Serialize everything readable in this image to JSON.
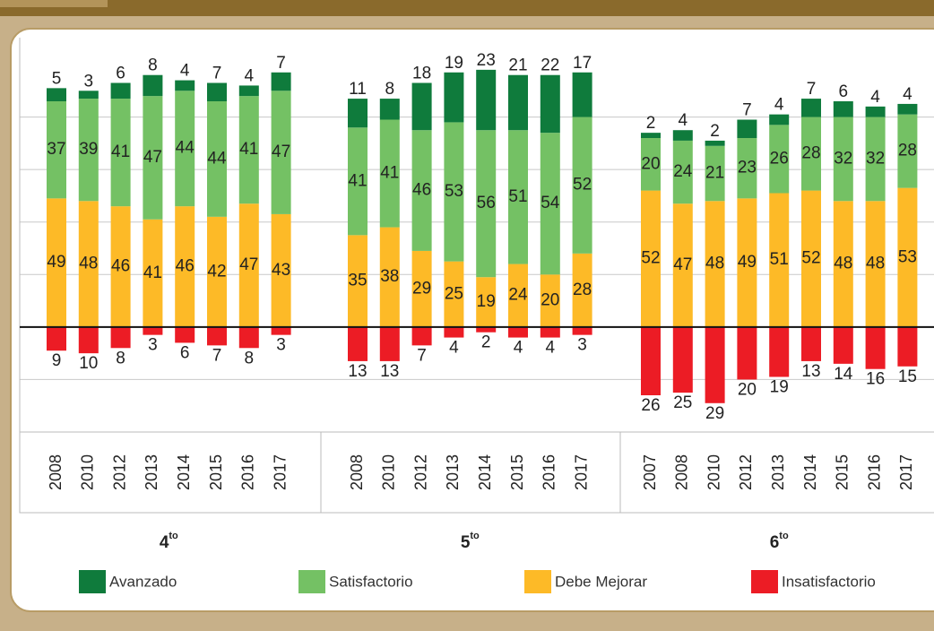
{
  "chart_data": {
    "type": "bar",
    "stacked": true,
    "ylim": [
      -40,
      100
    ],
    "yticks": [
      -20,
      0,
      20,
      40,
      60,
      80
    ],
    "grid": true,
    "groups": [
      {
        "label": "4",
        "label_sup": "to"
      },
      {
        "label": "5",
        "label_sup": "to"
      },
      {
        "label": "6",
        "label_sup": "to"
      }
    ],
    "categories": [
      [
        "2008",
        "2010",
        "2012",
        "2013",
        "2014",
        "2015",
        "2016",
        "2017"
      ],
      [
        "2008",
        "2010",
        "2012",
        "2013",
        "2014",
        "2015",
        "2016",
        "2017"
      ],
      [
        "2007",
        "2008",
        "2010",
        "2012",
        "2013",
        "2014",
        "2015",
        "2016",
        "2017"
      ]
    ],
    "series": [
      {
        "name": "Avanzado",
        "color": "#0f7b3c",
        "values": [
          [
            5,
            3,
            6,
            8,
            4,
            7,
            4,
            7
          ],
          [
            11,
            8,
            18,
            19,
            23,
            21,
            22,
            17
          ],
          [
            2,
            4,
            2,
            7,
            4,
            7,
            6,
            4,
            4
          ]
        ]
      },
      {
        "name": "Satisfactorio",
        "color": "#74c164",
        "values": [
          [
            37,
            39,
            41,
            47,
            44,
            44,
            41,
            47
          ],
          [
            41,
            41,
            46,
            53,
            56,
            51,
            54,
            52
          ],
          [
            20,
            24,
            21,
            23,
            26,
            28,
            32,
            32,
            28
          ]
        ]
      },
      {
        "name": "Debe Mejorar",
        "color": "#fdba27",
        "values": [
          [
            49,
            48,
            46,
            41,
            46,
            42,
            47,
            43
          ],
          [
            35,
            38,
            29,
            25,
            19,
            24,
            20,
            28
          ],
          [
            52,
            47,
            48,
            49,
            51,
            52,
            48,
            48,
            53
          ]
        ]
      },
      {
        "name": "Insatisfactorio",
        "color": "#ec1c25",
        "negative": true,
        "values": [
          [
            9,
            10,
            8,
            3,
            6,
            7,
            8,
            3
          ],
          [
            13,
            13,
            7,
            4,
            2,
            4,
            4,
            3
          ],
          [
            26,
            25,
            29,
            20,
            19,
            13,
            14,
            16,
            15
          ]
        ]
      }
    ]
  }
}
